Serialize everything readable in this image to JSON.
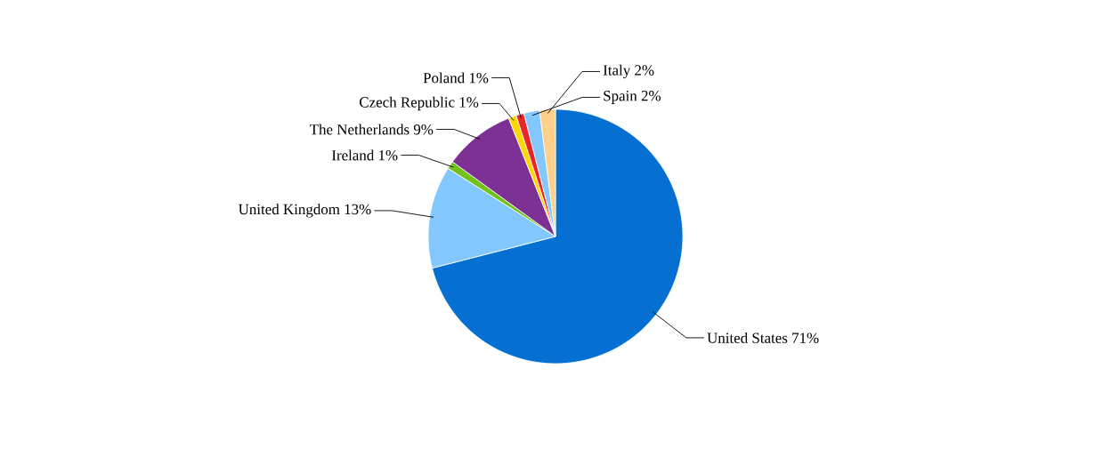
{
  "chart_data": {
    "type": "pie",
    "categories": [
      "United States",
      "United Kingdom",
      "Ireland",
      "The Netherlands",
      "Czech Republic",
      "Poland",
      "Spain",
      "Italy"
    ],
    "values": [
      71,
      13,
      1,
      9,
      1,
      1,
      2,
      2
    ],
    "value_labels": [
      "71%",
      "13%",
      "1%",
      "9%",
      "1%",
      "1%",
      "2%",
      "2%"
    ],
    "colors": [
      "#0570d1",
      "#82c8ff",
      "#72c21a",
      "#7d3195",
      "#ffd700",
      "#e8262a",
      "#82c8ff",
      "#ffd08a"
    ]
  }
}
